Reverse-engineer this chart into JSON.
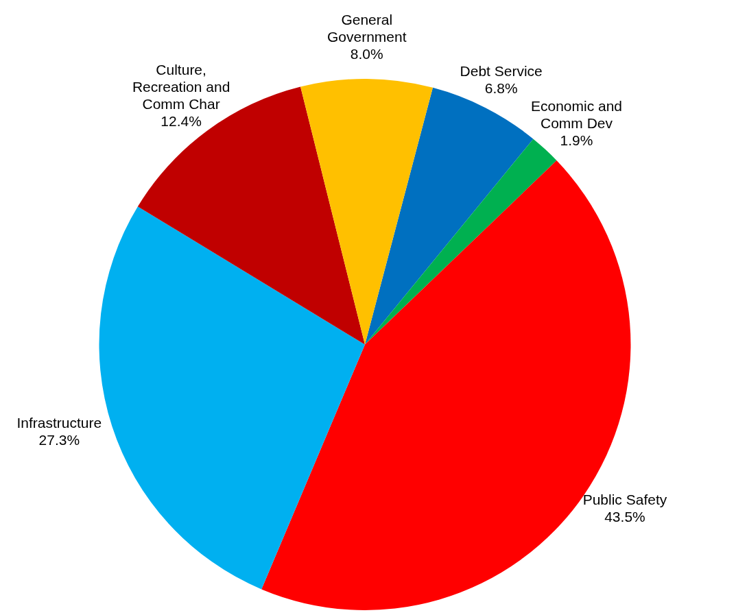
{
  "chart_data": {
    "type": "pie",
    "categories": [
      "Debt Service",
      "Economic and Comm Dev",
      "Public Safety",
      "Infrastructure",
      "Culture, Recreation and Comm Char",
      "General Government"
    ],
    "values": [
      6.8,
      1.9,
      43.5,
      27.3,
      12.4,
      8.0
    ],
    "colors": [
      "#0070c0",
      "#00b050",
      "#ff0000",
      "#00b0f0",
      "#c00000",
      "#ffc000"
    ],
    "value_labels": [
      "6.8%",
      "1.9%",
      "43.5%",
      "27.3%",
      "12.4%",
      "8.0%"
    ]
  }
}
